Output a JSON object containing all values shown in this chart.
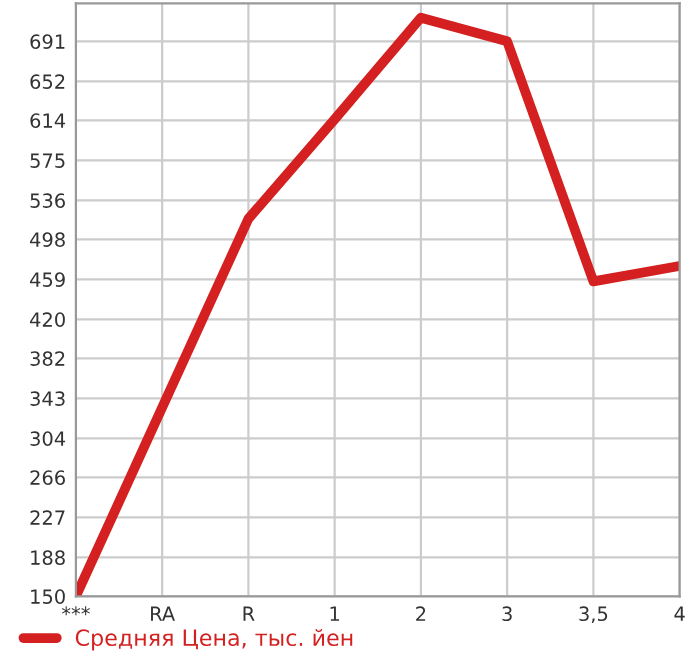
{
  "chart_data": {
    "type": "line",
    "categories": [
      "***",
      "RA",
      "R",
      "1",
      "2",
      "3",
      "3,5",
      "4"
    ],
    "series": [
      {
        "name": "Средняя Цена, тыс. йен",
        "color": "#d42020",
        "values": [
          150,
          334,
          518,
          615,
          714,
          691,
          457,
          472
        ]
      }
    ],
    "ylim": [
      150,
      728
    ],
    "yticks": [
      150,
      188,
      227,
      266,
      304,
      343,
      382,
      420,
      459,
      498,
      536,
      575,
      614,
      652,
      691
    ],
    "grid": true,
    "legend": "bottom left",
    "marker": "none",
    "line_style": "solid"
  }
}
